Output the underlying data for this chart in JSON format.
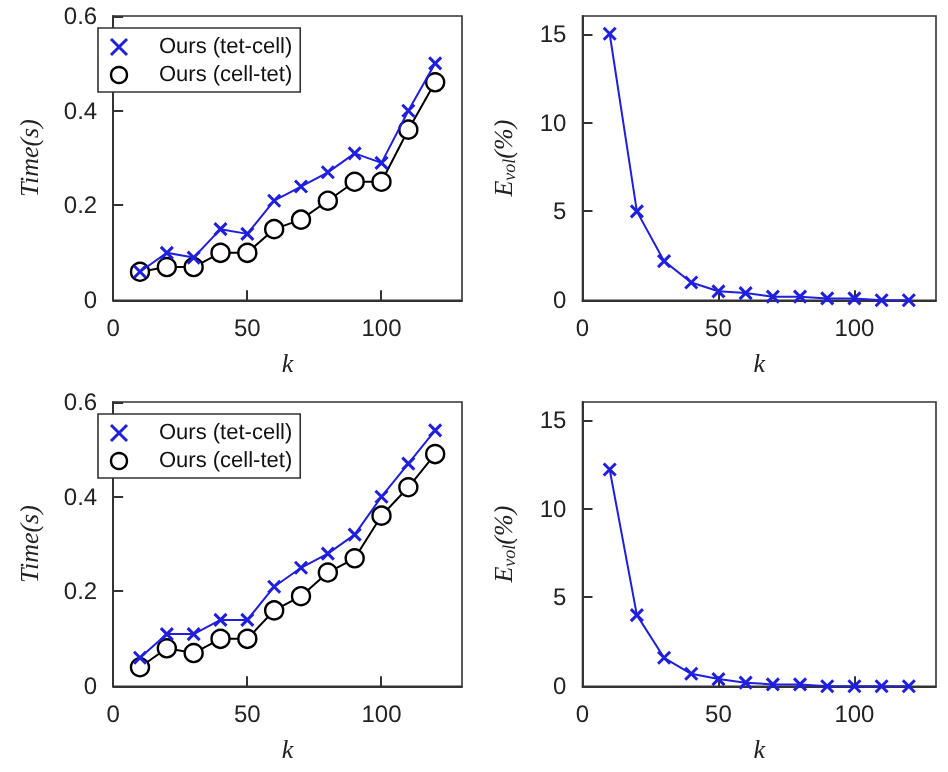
{
  "chart_data": [
    {
      "type": "line",
      "xlabel": "k",
      "ylabel": "Time(s)",
      "x": [
        10,
        20,
        30,
        40,
        50,
        60,
        70,
        80,
        90,
        100,
        110,
        120
      ],
      "xlim": [
        0,
        130
      ],
      "xticks": [
        0,
        50,
        100
      ],
      "ylim": [
        0,
        0.6
      ],
      "yticks": [
        0,
        0.2,
        0.4,
        0.6
      ],
      "grid": false,
      "legend": "top left",
      "series": [
        {
          "name": "Ours (tet-cell)",
          "color": "#1f1fe0",
          "marker": "cross",
          "values": [
            0.06,
            0.1,
            0.09,
            0.15,
            0.14,
            0.21,
            0.24,
            0.27,
            0.31,
            0.29,
            0.4,
            0.5
          ]
        },
        {
          "name": "Ours (cell-tet)",
          "color": "#000000",
          "marker": "circle",
          "values": [
            0.06,
            0.07,
            0.07,
            0.1,
            0.1,
            0.15,
            0.17,
            0.21,
            0.25,
            0.25,
            0.36,
            0.46
          ]
        }
      ]
    },
    {
      "type": "line",
      "xlabel": "k",
      "ylabel": "E$_{vol}$(%)",
      "x": [
        10,
        20,
        30,
        40,
        50,
        60,
        70,
        80,
        90,
        100,
        110,
        120
      ],
      "xlim": [
        0,
        130
      ],
      "xticks": [
        0,
        50,
        100
      ],
      "ylim": [
        0,
        16
      ],
      "yticks": [
        0,
        5,
        10,
        15
      ],
      "grid": false,
      "legend": false,
      "series": [
        {
          "color": "#1f1fe0",
          "marker": "cross",
          "values": [
            15,
            5,
            2.2,
            1.0,
            0.5,
            0.4,
            0.2,
            0.2,
            0.1,
            0.1,
            0,
            0
          ]
        }
      ]
    },
    {
      "type": "line",
      "xlabel": "k",
      "ylabel": "Time(s)",
      "x": [
        10,
        20,
        30,
        40,
        50,
        60,
        70,
        80,
        90,
        100,
        110,
        120
      ],
      "xlim": [
        0,
        130
      ],
      "xticks": [
        0,
        50,
        100
      ],
      "ylim": [
        0,
        0.6
      ],
      "yticks": [
        0,
        0.2,
        0.4,
        0.6
      ],
      "grid": false,
      "legend": "top left",
      "series": [
        {
          "name": "Ours (tet-cell)",
          "color": "#1f1fe0",
          "marker": "cross",
          "values": [
            0.06,
            0.11,
            0.11,
            0.14,
            0.14,
            0.21,
            0.25,
            0.28,
            0.32,
            0.4,
            0.47,
            0.54
          ]
        },
        {
          "name": "Ours (cell-tet)",
          "color": "#000000",
          "marker": "circle",
          "values": [
            0.04,
            0.08,
            0.07,
            0.1,
            0.1,
            0.16,
            0.19,
            0.24,
            0.27,
            0.36,
            0.42,
            0.49
          ]
        }
      ]
    },
    {
      "type": "line",
      "xlabel": "k",
      "ylabel": "E$_{vol}$(%)",
      "x": [
        10,
        20,
        30,
        40,
        50,
        60,
        70,
        80,
        90,
        100,
        110,
        120
      ],
      "xlim": [
        0,
        130
      ],
      "xticks": [
        0,
        50,
        100
      ],
      "ylim": [
        0,
        16
      ],
      "yticks": [
        0,
        5,
        10,
        15
      ],
      "grid": false,
      "legend": false,
      "series": [
        {
          "color": "#1f1fe0",
          "marker": "cross",
          "values": [
            12.2,
            4.0,
            1.6,
            0.7,
            0.4,
            0.2,
            0.1,
            0.1,
            0,
            0,
            0,
            0
          ]
        }
      ]
    }
  ]
}
